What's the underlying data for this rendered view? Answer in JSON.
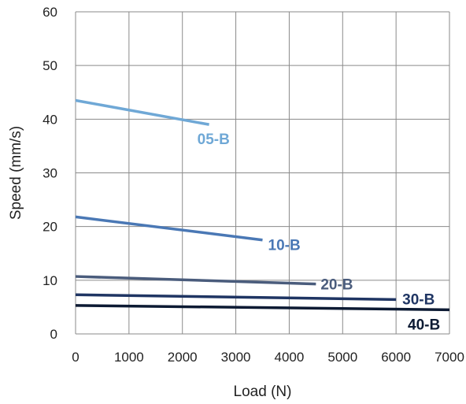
{
  "chart_data": {
    "type": "line",
    "title": "",
    "xlabel": "Load (N)",
    "ylabel": "Speed (mm/s)",
    "xlim": [
      0,
      7000
    ],
    "ylim": [
      0,
      60
    ],
    "xticks": [
      "0",
      "1000",
      "2000",
      "3000",
      "4000",
      "5000",
      "6000",
      "7000"
    ],
    "yticks": [
      "0",
      "10",
      "20",
      "30",
      "40",
      "50",
      "60"
    ],
    "grid": true,
    "legend": "inline labels",
    "series": [
      {
        "name": "05-B",
        "color": "#6fa8d6",
        "x": [
          0,
          2500
        ],
        "y": [
          43.5,
          39
        ]
      },
      {
        "name": "10-B",
        "color": "#4a78b5",
        "x": [
          0,
          3500
        ],
        "y": [
          21.8,
          17.5
        ]
      },
      {
        "name": "20-B",
        "color": "#4a5c7c",
        "x": [
          0,
          4500
        ],
        "y": [
          10.7,
          9.3
        ]
      },
      {
        "name": "30-B",
        "color": "#1f3563",
        "x": [
          0,
          6000
        ],
        "y": [
          7.3,
          6.4
        ]
      },
      {
        "name": "40-B",
        "color": "#0c1a33",
        "x": [
          0,
          7000
        ],
        "y": [
          5.3,
          4.5
        ]
      }
    ]
  }
}
